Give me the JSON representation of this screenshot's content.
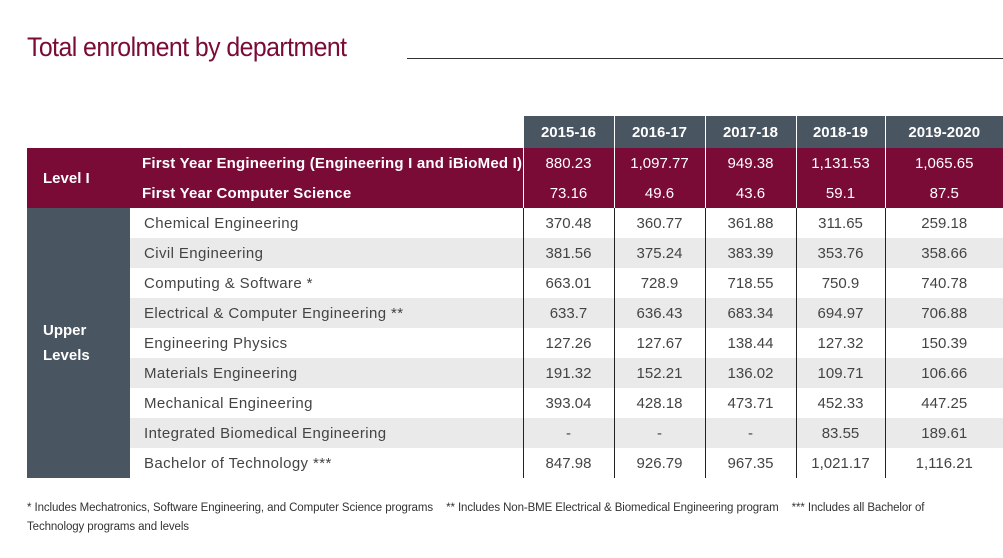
{
  "title": "Total enrolment by department",
  "years": [
    "2015-16",
    "2016-17",
    "2017-18",
    "2018-19",
    "2019-2020"
  ],
  "level1": {
    "label": "Level I",
    "rows": [
      {
        "dept": "First Year Engineering (Engineering I and iBioMed I)",
        "values": [
          "880.23",
          "1,097.77",
          "949.38",
          "1,131.53",
          "1,065.65"
        ]
      },
      {
        "dept": "First Year Computer Science",
        "values": [
          "73.16",
          "49.6",
          "43.6",
          "59.1",
          "87.5"
        ]
      }
    ]
  },
  "upper": {
    "label_line1": "Upper",
    "label_line2": "Levels",
    "rows": [
      {
        "dept": "Chemical Engineering",
        "values": [
          "370.48",
          "360.77",
          "361.88",
          "311.65",
          "259.18"
        ]
      },
      {
        "dept": "Civil Engineering",
        "values": [
          "381.56",
          "375.24",
          "383.39",
          "353.76",
          "358.66"
        ]
      },
      {
        "dept": "Computing & Software *",
        "values": [
          "663.01",
          "728.9",
          "718.55",
          "750.9",
          "740.78"
        ]
      },
      {
        "dept": "Electrical & Computer Engineering **",
        "values": [
          "633.7",
          "636.43",
          "683.34",
          "694.97",
          "706.88"
        ]
      },
      {
        "dept": "Engineering Physics",
        "values": [
          "127.26",
          "127.67",
          "138.44",
          "127.32",
          "150.39"
        ]
      },
      {
        "dept": "Materials Engineering",
        "values": [
          "191.32",
          "152.21",
          "136.02",
          "109.71",
          "106.66"
        ]
      },
      {
        "dept": "Mechanical Engineering",
        "values": [
          "393.04",
          "428.18",
          "473.71",
          "452.33",
          "447.25"
        ]
      },
      {
        "dept": "Integrated Biomedical Engineering",
        "values": [
          "-",
          "-",
          "-",
          "83.55",
          "189.61"
        ]
      },
      {
        "dept": "Bachelor of Technology ***",
        "values": [
          "847.98",
          "926.79",
          "967.35",
          "1,021.17",
          "1,116.21"
        ]
      }
    ]
  },
  "footnotes": {
    "note1": "* Includes Mechatronics, Software Engineering, and Computer Science programs",
    "note2": "** Includes Non-BME Electrical & Biomedical Engineering program",
    "note3": "*** Includes all Bachelor of Technology programs and levels"
  }
}
